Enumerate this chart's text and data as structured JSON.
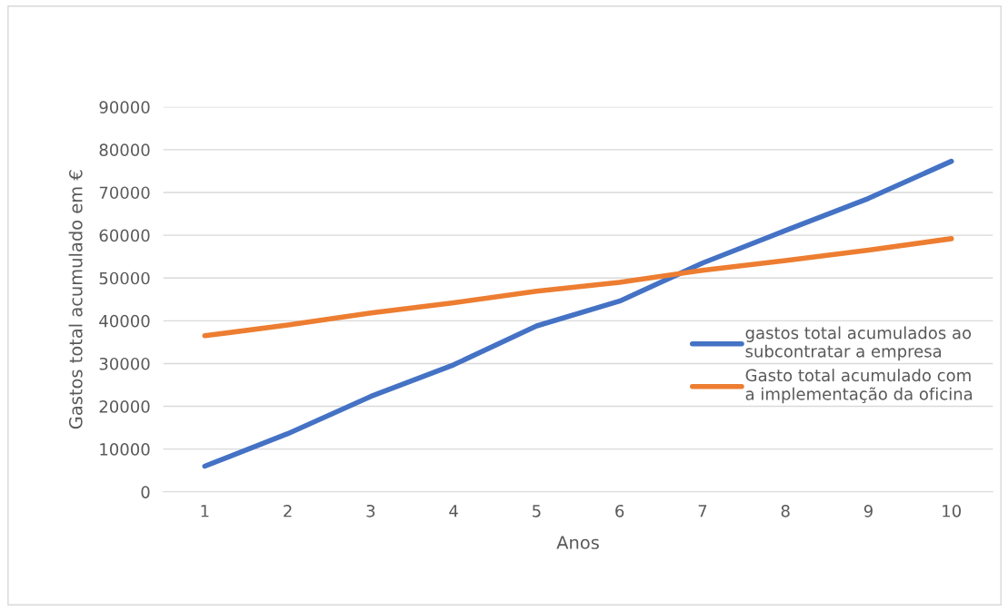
{
  "chart_data": {
    "type": "line",
    "xlabel": "Anos",
    "ylabel": "Gastos total acumulado em €",
    "categories": [
      "1",
      "2",
      "3",
      "4",
      "5",
      "6",
      "7",
      "8",
      "9",
      "10"
    ],
    "series": [
      {
        "name": "gastos total acumulados ao subcontratar a empresa",
        "color": "#4472c4",
        "values": [
          6000,
          13600,
          22300,
          29700,
          38800,
          44600,
          53500,
          61100,
          68600,
          77300
        ]
      },
      {
        "name": "Gasto total acumulado com a implementação da oficina",
        "color": "#ed7d31",
        "values": [
          36500,
          39000,
          41800,
          44200,
          46900,
          49000,
          51800,
          54100,
          56500,
          59200
        ]
      }
    ],
    "ylim": [
      0,
      90000
    ],
    "yticks": [
      0,
      10000,
      20000,
      30000,
      40000,
      50000,
      60000,
      70000,
      80000,
      90000
    ],
    "grid": "y",
    "legend": "right",
    "marker": "none",
    "line_style": "solid"
  }
}
